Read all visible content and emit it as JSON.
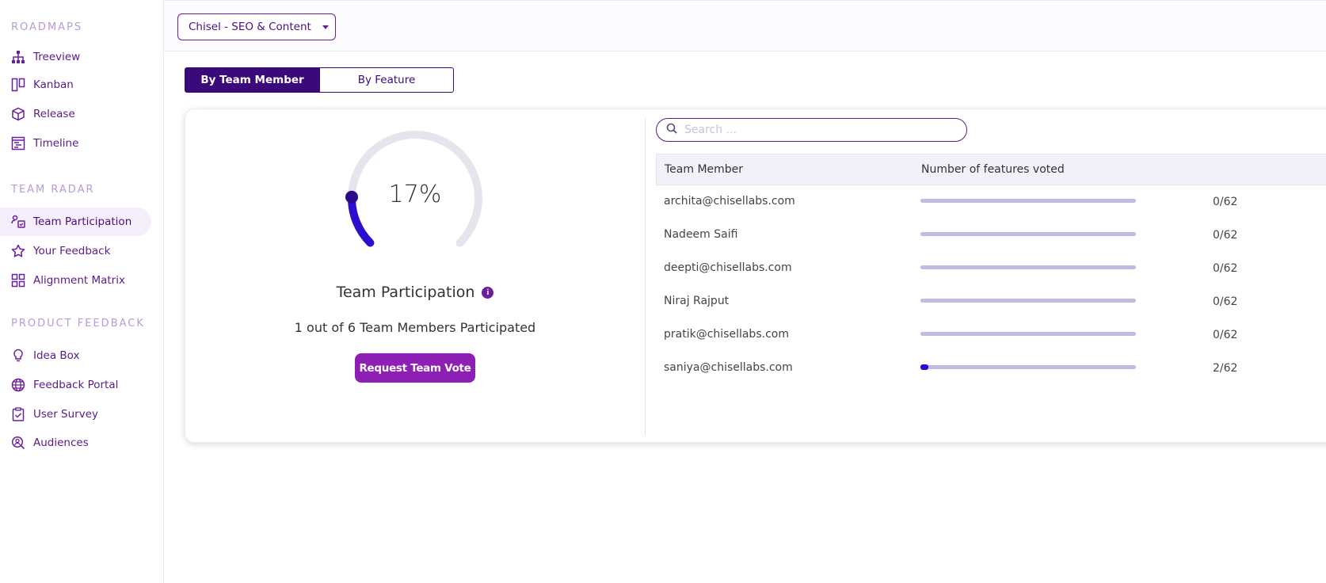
{
  "sidebar": {
    "sections": [
      {
        "title": "ROADMAPS",
        "items": [
          {
            "label": "Treeview",
            "icon": "hierarchy-icon"
          },
          {
            "label": "Kanban",
            "icon": "kanban-icon"
          },
          {
            "label": "Release",
            "icon": "cube-icon"
          },
          {
            "label": "Timeline",
            "icon": "timeline-icon"
          }
        ]
      },
      {
        "title": "TEAM RADAR",
        "items": [
          {
            "label": "Team Participation",
            "icon": "team-participation-icon",
            "active": true
          },
          {
            "label": "Your Feedback",
            "icon": "star-icon"
          },
          {
            "label": "Alignment Matrix",
            "icon": "grid-icon"
          }
        ]
      },
      {
        "title": "PRODUCT FEEDBACK",
        "items": [
          {
            "label": "Idea Box",
            "icon": "lightbulb-icon"
          },
          {
            "label": "Feedback Portal",
            "icon": "globe-icon"
          },
          {
            "label": "User Survey",
            "icon": "clipboard-check-icon"
          },
          {
            "label": "Audiences",
            "icon": "user-search-icon"
          }
        ]
      }
    ]
  },
  "topbar": {
    "project_select": "Chisel - SEO & Content"
  },
  "view_toggle": {
    "active": "By Team Member",
    "inactive": "By Feature"
  },
  "participation": {
    "percent_label": "17%",
    "percent_value": 17,
    "title": "Team Participation",
    "info_icon": "i",
    "subtitle": "1 out of 6 Team Members Participated",
    "request_button": "Request Team Vote"
  },
  "search": {
    "placeholder": "Search ..."
  },
  "table": {
    "headers": [
      "Team Member",
      "Number of features voted"
    ],
    "rows": [
      {
        "member": "archita@chisellabs.com",
        "count": "0/62",
        "progress": 0
      },
      {
        "member": "Nadeem Saifi",
        "count": "0/62",
        "progress": 0
      },
      {
        "member": "deepti@chisellabs.com",
        "count": "0/62",
        "progress": 0
      },
      {
        "member": "Niraj Rajput",
        "count": "0/62",
        "progress": 0
      },
      {
        "member": "pratik@chisellabs.com",
        "count": "0/62",
        "progress": 0
      },
      {
        "member": "saniya@chisellabs.com",
        "count": "2/62",
        "progress": 0.032
      }
    ]
  },
  "colors": {
    "accent": "#6b1f9a",
    "toggle_active": "#3b0a7a",
    "gauge_fill": "#2a0fcf",
    "gauge_track": "#e6e4ec",
    "button": "#8e1fb4",
    "bar_track": "#c0bbe0"
  }
}
